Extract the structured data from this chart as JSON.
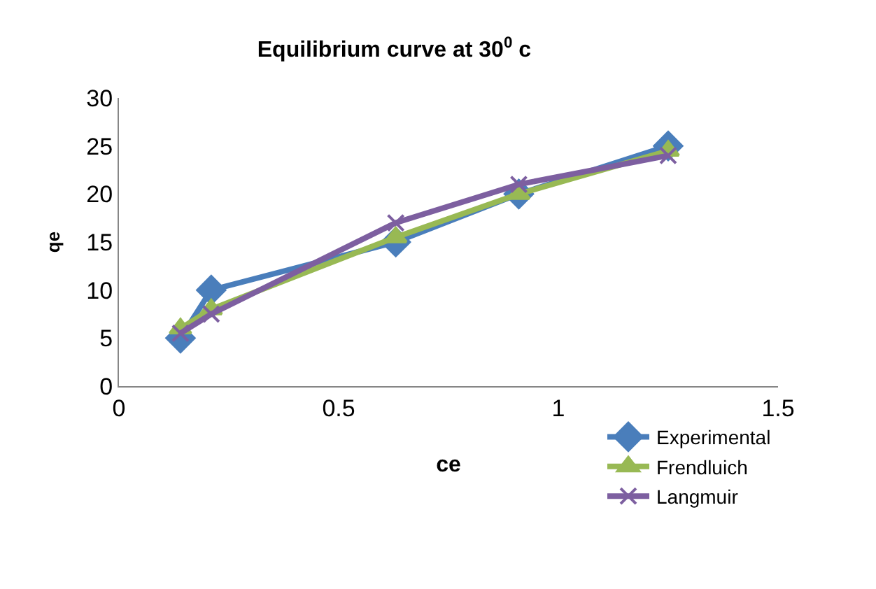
{
  "chart_data": {
    "type": "line",
    "title": "Equilibrium curve at 30$^{0}$ c",
    "xlabel": "ce",
    "ylabel": "qe",
    "x": [
      0.14,
      0.21,
      0.63,
      0.91,
      1.25
    ],
    "series": [
      {
        "name": "Experimental",
        "color": "#4a7ebb",
        "values": [
          5,
          10,
          15,
          20,
          25
        ],
        "marker": "diamond"
      },
      {
        "name": "Frendluich",
        "color": "#98b954",
        "values": [
          6,
          8,
          15.5,
          20,
          24.5
        ],
        "marker": "triangle"
      },
      {
        "name": "Langmuir",
        "color": "#7d5fa0",
        "values": [
          5.5,
          7.5,
          17,
          21,
          24
        ],
        "marker": "cross"
      }
    ],
    "xlim": [
      0,
      1.5
    ],
    "xticks": [
      0,
      0.5,
      1,
      1.5
    ],
    "ylim": [
      0,
      30
    ],
    "yticks": [
      0,
      5,
      10,
      15,
      20,
      25,
      30
    ],
    "grid": false,
    "legend": "bottom right",
    "line_style": "solid"
  }
}
